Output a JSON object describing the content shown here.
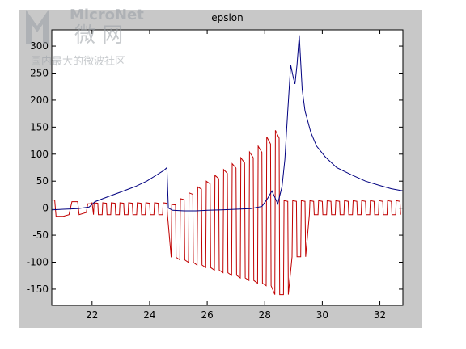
{
  "watermark": {
    "brand": "MicroNet",
    "cn_name": "微 网",
    "slogan": "国内最大的微波社区"
  },
  "chart_data": {
    "type": "line",
    "title": "epslon",
    "xlabel": "",
    "ylabel": "",
    "xlim": [
      20.6,
      32.8
    ],
    "ylim": [
      -180,
      330
    ],
    "xticks": [
      22,
      24,
      26,
      28,
      30,
      32
    ],
    "yticks": [
      -150,
      -100,
      -50,
      0,
      50,
      100,
      150,
      200,
      250,
      300
    ],
    "grid": false,
    "legend": "none",
    "series": [
      {
        "color": "#000080",
        "x": [
          20.6,
          21.0,
          21.5,
          21.9,
          22.1,
          22.6,
          23.0,
          23.5,
          23.9,
          24.2,
          24.5,
          24.6,
          24.65,
          24.8,
          25.2,
          25.6,
          26.0,
          26.5,
          27.0,
          27.5,
          27.9,
          28.1,
          28.25,
          28.35,
          28.45,
          28.6,
          28.7,
          28.8,
          28.9,
          29.0,
          29.05,
          29.12,
          29.2,
          29.3,
          29.4,
          29.6,
          29.8,
          30.1,
          30.5,
          31.0,
          31.5,
          32.0,
          32.4,
          32.8
        ],
        "y": [
          -3,
          -2,
          -1,
          2,
          12,
          22,
          30,
          40,
          50,
          60,
          70,
          75,
          0,
          -4,
          -5,
          -5,
          -4,
          -3,
          -2,
          -1,
          3,
          18,
          32,
          20,
          8,
          40,
          90,
          180,
          265,
          240,
          230,
          265,
          320,
          220,
          180,
          140,
          115,
          95,
          75,
          62,
          50,
          42,
          36,
          32
        ]
      },
      {
        "color": "#c00000",
        "x": [
          20.6,
          20.7,
          20.75,
          21.0,
          21.2,
          21.3,
          21.5,
          21.55,
          21.8,
          21.85,
          21.95,
          22.0
        ],
        "y": [
          15,
          15,
          -15,
          -15,
          -12,
          12,
          12,
          -12,
          -8,
          8,
          8,
          10
        ]
      }
    ]
  }
}
